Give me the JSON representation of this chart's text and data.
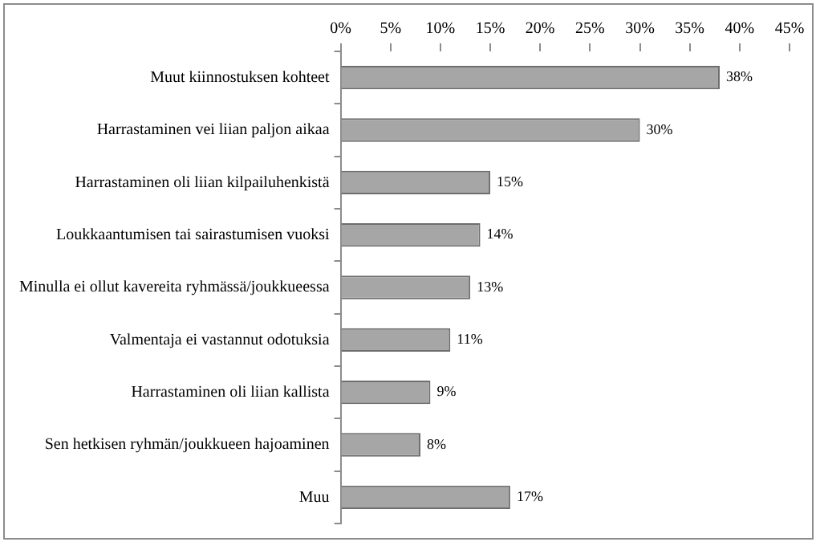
{
  "chart_data": {
    "type": "bar",
    "orientation": "horizontal",
    "categories": [
      "Muut kiinnostuksen kohteet",
      "Harrastaminen vei liian paljon aikaa",
      "Harrastaminen oli liian kilpailuhenkistä",
      "Loukkaantumisen tai sairastumisen vuoksi",
      "Minulla ei ollut kavereita ryhmässä/joukkueessa",
      "Valmentaja ei vastannut odotuksia",
      "Harrastaminen oli liian kallista",
      "Sen hetkisen ryhmän/joukkueen hajoaminen",
      "Muu"
    ],
    "values": [
      38,
      30,
      15,
      14,
      13,
      11,
      9,
      8,
      17
    ],
    "value_labels": [
      "38%",
      "30%",
      "15%",
      "14%",
      "13%",
      "11%",
      "9%",
      "8%",
      "17%"
    ],
    "color": "#a6a6a6",
    "xlim": [
      0,
      45
    ],
    "xticks": [
      {
        "value": 0,
        "label": "0%"
      },
      {
        "value": 5,
        "label": "5%"
      },
      {
        "value": 10,
        "label": "10%"
      },
      {
        "value": 15,
        "label": "15%"
      },
      {
        "value": 20,
        "label": "20%"
      },
      {
        "value": 25,
        "label": "25%"
      },
      {
        "value": 30,
        "label": "30%"
      },
      {
        "value": 35,
        "label": "35%"
      },
      {
        "value": 40,
        "label": "40%"
      },
      {
        "value": 45,
        "label": "45%"
      }
    ],
    "legend": false
  }
}
